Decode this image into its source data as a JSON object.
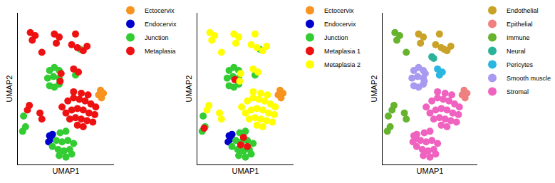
{
  "chart_data": [
    {
      "type": "scatter",
      "x_label": "UMAP1",
      "y_label": "UMAP2",
      "xlim": [
        0,
        10
      ],
      "ylim": [
        0,
        10
      ],
      "tick_labels": false,
      "grid": false,
      "legend": "right",
      "marker": "circle",
      "series": [
        {
          "name": "Ectocervix",
          "color": "#f7931e",
          "x": [
            8.4,
            8.7,
            8.6,
            8.9
          ],
          "y": [
            4.6,
            4.4,
            4.9,
            4.7
          ]
        },
        {
          "name": "Endocervix",
          "color": "#0000cc",
          "x": [
            3.3,
            3.5,
            3.2,
            3.6
          ],
          "y": [
            1.9,
            1.7,
            1.5,
            2.0
          ]
        },
        {
          "name": "Junction",
          "color": "#33cc33",
          "x": [
            3.6,
            4.2,
            4.8,
            5.4,
            4.0,
            4.6,
            5.2,
            5.8,
            4.4,
            5.0,
            4.3,
            5.0,
            5.6,
            3.3,
            3.8,
            4.3,
            3.1,
            3.7,
            4.3,
            3.3,
            3.8,
            4.3,
            6.0,
            6.5,
            0.5,
            0.8,
            0.6
          ],
          "y": [
            1.2,
            1.0,
            0.9,
            1.0,
            1.6,
            1.5,
            1.6,
            1.4,
            2.1,
            2.2,
            0.6,
            0.5,
            0.7,
            6.2,
            6.4,
            6.2,
            5.7,
            5.8,
            5.7,
            5.2,
            5.1,
            5.3,
            5.9,
            7.6,
            2.2,
            2.5,
            3.2
          ]
        },
        {
          "name": "Metaplasia",
          "color": "#ee1111",
          "x": [
            4.6,
            5.2,
            5.8,
            6.4,
            7.0,
            7.6,
            8.1,
            5.0,
            5.6,
            6.2,
            6.8,
            7.4,
            8.0,
            5.4,
            6.0,
            6.6,
            7.2,
            7.8,
            6.2,
            6.8,
            5.8,
            6.6,
            7.3,
            1.3,
            1.8,
            1.5,
            3.8,
            4.3,
            4.0,
            5.6,
            6.2,
            6.8,
            7.2,
            5.8,
            6.3,
            4.5,
            4.4,
            2.5,
            6.0,
            1.0,
            1.2,
            2.3,
            2.5
          ],
          "y": [
            3.8,
            4.2,
            4.4,
            4.3,
            4.2,
            4.0,
            3.8,
            3.4,
            3.6,
            3.7,
            3.6,
            3.4,
            3.3,
            3.0,
            3.1,
            3.0,
            2.9,
            2.8,
            2.6,
            2.5,
            4.8,
            4.7,
            4.6,
            8.7,
            8.5,
            8.2,
            8.6,
            8.4,
            8.0,
            7.9,
            7.7,
            7.5,
            7.8,
            6.3,
            6.1,
            6.0,
            5.5,
            7.4,
            8.6,
            3.6,
            3.9,
            3.4,
            3.0
          ]
        }
      ]
    },
    {
      "type": "scatter",
      "x_label": "UMAP1",
      "y_label": "UMAP2",
      "xlim": [
        0,
        10
      ],
      "ylim": [
        0,
        10
      ],
      "tick_labels": false,
      "grid": false,
      "legend": "right",
      "marker": "circle",
      "series": [
        {
          "name": "Ectocervix",
          "color": "#f7931e",
          "x": [
            8.4,
            8.7,
            8.6,
            8.9
          ],
          "y": [
            4.6,
            4.4,
            4.9,
            4.7
          ]
        },
        {
          "name": "Endocervix",
          "color": "#0000cc",
          "x": [
            3.3,
            3.5,
            3.2,
            3.6
          ],
          "y": [
            1.9,
            1.7,
            1.5,
            2.0
          ]
        },
        {
          "name": "Junction",
          "color": "#33cc33",
          "x": [
            3.6,
            4.2,
            4.8,
            5.4,
            4.0,
            4.6,
            5.2,
            5.8,
            4.4,
            5.0,
            4.3,
            5.0,
            5.6,
            3.3,
            3.8,
            4.3,
            3.1,
            3.7,
            4.3,
            3.3,
            3.8,
            4.3,
            6.0,
            6.5,
            0.5,
            0.8,
            0.6
          ],
          "y": [
            1.2,
            1.0,
            0.9,
            1.0,
            1.6,
            1.5,
            1.6,
            1.4,
            2.1,
            2.2,
            0.6,
            0.5,
            0.7,
            6.2,
            6.4,
            6.2,
            5.7,
            5.8,
            5.7,
            5.2,
            5.1,
            5.3,
            5.9,
            7.6,
            2.2,
            2.5,
            3.2
          ]
        },
        {
          "name": "Metaplasia 1",
          "color": "#ee1111",
          "x": [
            4.5,
            5.2,
            3.9,
            4.8,
            0.7
          ],
          "y": [
            1.3,
            1.2,
            5.6,
            1.8,
            2.4
          ]
        },
        {
          "name": "Metaplasia 2",
          "color": "#ffff00",
          "x": [
            4.6,
            5.2,
            5.8,
            6.4,
            7.0,
            7.6,
            8.1,
            5.0,
            5.6,
            6.2,
            6.8,
            7.4,
            8.0,
            5.4,
            6.0,
            6.6,
            7.2,
            7.8,
            6.2,
            6.8,
            5.8,
            6.6,
            7.3,
            1.3,
            1.8,
            1.5,
            3.8,
            4.3,
            4.0,
            5.6,
            6.2,
            6.8,
            7.2,
            5.8,
            6.3,
            4.5,
            4.4,
            2.5,
            6.0,
            1.0,
            1.2,
            2.3,
            2.5
          ],
          "y": [
            3.8,
            4.2,
            4.4,
            4.3,
            4.2,
            4.0,
            3.8,
            3.4,
            3.6,
            3.7,
            3.6,
            3.4,
            3.3,
            3.0,
            3.1,
            3.0,
            2.9,
            2.8,
            2.6,
            2.5,
            4.8,
            4.7,
            4.6,
            8.7,
            8.5,
            8.2,
            8.6,
            8.4,
            8.0,
            7.9,
            7.7,
            7.5,
            7.8,
            6.3,
            6.1,
            6.0,
            5.5,
            7.4,
            8.6,
            3.6,
            3.9,
            3.4,
            3.0
          ]
        }
      ]
    },
    {
      "type": "scatter",
      "x_label": "UMAP1",
      "y_label": "UMAP2",
      "xlim": [
        0,
        10
      ],
      "ylim": [
        0,
        10
      ],
      "tick_labels": false,
      "grid": false,
      "legend": "right",
      "marker": "circle",
      "series": [
        {
          "name": "Endothelial",
          "color": "#c9a227",
          "x": [
            3.8,
            4.3,
            4.0,
            5.6,
            6.2,
            6.8,
            7.2,
            6.5,
            6.0
          ],
          "y": [
            8.6,
            8.4,
            8.0,
            7.9,
            7.7,
            7.5,
            7.8,
            7.6,
            8.6
          ]
        },
        {
          "name": "Epithelial",
          "color": "#f08080",
          "x": [
            8.4,
            8.7,
            8.6,
            8.9
          ],
          "y": [
            4.6,
            4.4,
            4.9,
            4.7
          ]
        },
        {
          "name": "Immune",
          "color": "#66b32e",
          "x": [
            1.3,
            1.8,
            1.5,
            0.5,
            0.8,
            0.6,
            1.0,
            1.2,
            2.3,
            2.5,
            2.5
          ],
          "y": [
            8.7,
            8.5,
            8.2,
            2.2,
            2.5,
            3.2,
            3.6,
            3.9,
            3.4,
            3.0,
            7.4
          ]
        },
        {
          "name": "Neural",
          "color": "#2bb39a",
          "x": [
            5.2,
            5.4
          ],
          "y": [
            7.1,
            7.0
          ]
        },
        {
          "name": "Pericytes",
          "color": "#29b6e0",
          "x": [
            5.8,
            6.3,
            6.0
          ],
          "y": [
            6.3,
            6.1,
            5.9
          ]
        },
        {
          "name": "Smooth muscle",
          "color": "#a79af0",
          "x": [
            3.3,
            3.8,
            4.3,
            3.1,
            3.7,
            4.3,
            3.3,
            3.8,
            4.3,
            4.5,
            4.4
          ],
          "y": [
            6.2,
            6.4,
            6.2,
            5.7,
            5.8,
            5.7,
            5.2,
            5.1,
            5.3,
            6.0,
            5.5
          ]
        },
        {
          "name": "Stromal",
          "color": "#f062c0",
          "x": [
            4.6,
            5.2,
            5.8,
            6.4,
            7.0,
            7.6,
            8.1,
            5.0,
            5.6,
            6.2,
            6.8,
            7.4,
            8.0,
            5.4,
            6.0,
            6.6,
            7.2,
            7.8,
            6.2,
            6.8,
            5.8,
            6.6,
            7.3,
            3.6,
            4.2,
            4.8,
            5.4,
            4.0,
            4.6,
            5.2,
            5.8,
            4.4,
            5.0,
            4.3,
            5.0,
            5.6,
            3.3,
            3.5,
            3.2,
            3.6
          ],
          "y": [
            3.8,
            4.2,
            4.4,
            4.3,
            4.2,
            4.0,
            3.8,
            3.4,
            3.6,
            3.7,
            3.6,
            3.4,
            3.3,
            3.0,
            3.1,
            3.0,
            2.9,
            2.8,
            2.6,
            2.5,
            4.8,
            4.7,
            4.6,
            1.2,
            1.0,
            0.9,
            1.0,
            1.6,
            1.5,
            1.6,
            1.4,
            2.1,
            2.2,
            0.6,
            0.5,
            0.7,
            1.9,
            1.7,
            1.5,
            2.0
          ]
        }
      ]
    }
  ]
}
